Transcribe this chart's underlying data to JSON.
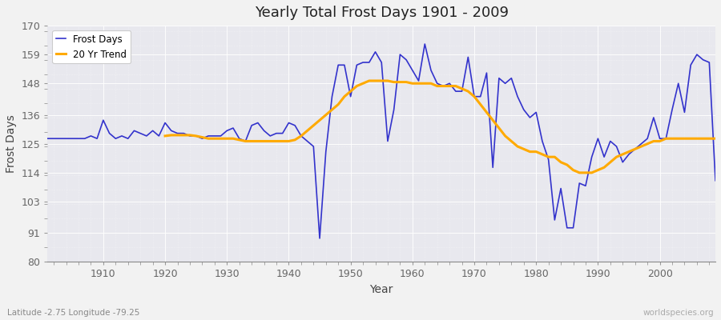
{
  "title": "Yearly Total Frost Days 1901 - 2009",
  "xlabel": "Year",
  "ylabel": "Frost Days",
  "subtitle": "Latitude -2.75 Longitude -79.25",
  "watermark": "worldspecies.org",
  "ylim": [
    80,
    170
  ],
  "yticks": [
    80,
    91,
    103,
    114,
    125,
    136,
    148,
    159,
    170
  ],
  "xlim": [
    1901,
    2009
  ],
  "xticks": [
    1910,
    1920,
    1930,
    1940,
    1950,
    1960,
    1970,
    1980,
    1990,
    2000
  ],
  "line_color": "#3333cc",
  "trend_color": "#ffaa00",
  "plot_bg_color": "#e8e8ee",
  "fig_bg_color": "#f0f0f0",
  "legend_labels": [
    "Frost Days",
    "20 Yr Trend"
  ],
  "frost_days": {
    "1901": 127,
    "1902": 127,
    "1903": 127,
    "1904": 127,
    "1905": 127,
    "1906": 127,
    "1907": 127,
    "1908": 128,
    "1909": 127,
    "1910": 134,
    "1911": 129,
    "1912": 127,
    "1913": 128,
    "1914": 127,
    "1915": 130,
    "1916": 129,
    "1917": 128,
    "1918": 130,
    "1919": 128,
    "1920": 133,
    "1921": 130,
    "1922": 129,
    "1923": 129,
    "1924": 128,
    "1925": 128,
    "1926": 127,
    "1927": 128,
    "1928": 128,
    "1929": 128,
    "1930": 130,
    "1931": 131,
    "1932": 127,
    "1933": 126,
    "1934": 132,
    "1935": 133,
    "1936": 130,
    "1937": 128,
    "1938": 129,
    "1939": 129,
    "1940": 133,
    "1941": 132,
    "1942": 128,
    "1943": 126,
    "1944": 124,
    "1945": 89,
    "1946": 122,
    "1947": 143,
    "1948": 155,
    "1949": 155,
    "1950": 143,
    "1951": 155,
    "1952": 156,
    "1953": 156,
    "1954": 160,
    "1955": 156,
    "1956": 126,
    "1957": 138,
    "1958": 159,
    "1959": 157,
    "1960": 153,
    "1961": 149,
    "1962": 163,
    "1963": 153,
    "1964": 148,
    "1965": 147,
    "1966": 148,
    "1967": 145,
    "1968": 145,
    "1969": 158,
    "1970": 143,
    "1971": 143,
    "1972": 152,
    "1973": 116,
    "1974": 150,
    "1975": 148,
    "1976": 150,
    "1977": 143,
    "1978": 138,
    "1979": 135,
    "1980": 137,
    "1981": 126,
    "1982": 119,
    "1983": 96,
    "1984": 108,
    "1985": 93,
    "1986": 93,
    "1987": 110,
    "1988": 109,
    "1989": 120,
    "1990": 127,
    "1991": 120,
    "1992": 126,
    "1993": 124,
    "1994": 118,
    "1995": 121,
    "1996": 123,
    "1997": 125,
    "1998": 127,
    "1999": 135,
    "2000": 127,
    "2001": 127,
    "2002": 138,
    "2003": 148,
    "2004": 137,
    "2005": 155,
    "2006": 159,
    "2007": 157,
    "2008": 156,
    "2009": 111
  },
  "trend_days": {
    "1920": 128.0,
    "1921": 128.3,
    "1922": 128.3,
    "1923": 128.3,
    "1924": 128.3,
    "1925": 128.0,
    "1926": 127.5,
    "1927": 127.0,
    "1928": 127.0,
    "1929": 127.0,
    "1930": 127.0,
    "1931": 127.0,
    "1932": 126.5,
    "1933": 126.0,
    "1934": 126.0,
    "1935": 126.0,
    "1936": 126.0,
    "1937": 126.0,
    "1938": 126.0,
    "1939": 126.0,
    "1940": 126.0,
    "1941": 126.5,
    "1942": 128.0,
    "1943": 130.0,
    "1944": 132.0,
    "1945": 134.0,
    "1946": 136.0,
    "1947": 138.0,
    "1948": 140.0,
    "1949": 143.0,
    "1950": 145.0,
    "1951": 147.0,
    "1952": 148.0,
    "1953": 149.0,
    "1954": 149.0,
    "1955": 149.0,
    "1956": 149.0,
    "1957": 148.5,
    "1958": 148.5,
    "1959": 148.5,
    "1960": 148.0,
    "1961": 148.0,
    "1962": 148.0,
    "1963": 148.0,
    "1964": 147.0,
    "1965": 147.0,
    "1966": 147.0,
    "1967": 147.0,
    "1968": 146.0,
    "1969": 145.0,
    "1970": 143.0,
    "1971": 140.0,
    "1972": 137.0,
    "1973": 134.0,
    "1974": 131.0,
    "1975": 128.0,
    "1976": 126.0,
    "1977": 124.0,
    "1978": 123.0,
    "1979": 122.0,
    "1980": 122.0,
    "1981": 121.0,
    "1982": 120.0,
    "1983": 120.0,
    "1984": 118.0,
    "1985": 117.0,
    "1986": 115.0,
    "1987": 114.0,
    "1988": 114.0,
    "1989": 114.0,
    "1990": 115.0,
    "1991": 116.0,
    "1992": 118.0,
    "1993": 120.0,
    "1994": 121.0,
    "1995": 122.0,
    "1996": 123.0,
    "1997": 124.0,
    "1998": 125.0,
    "1999": 126.0,
    "2000": 126.0,
    "2001": 127.0,
    "2002": 127.0,
    "2003": 127.0,
    "2004": 127.0,
    "2005": 127.0,
    "2006": 127.0,
    "2007": 127.0,
    "2008": 127.0,
    "2009": 127.0
  }
}
